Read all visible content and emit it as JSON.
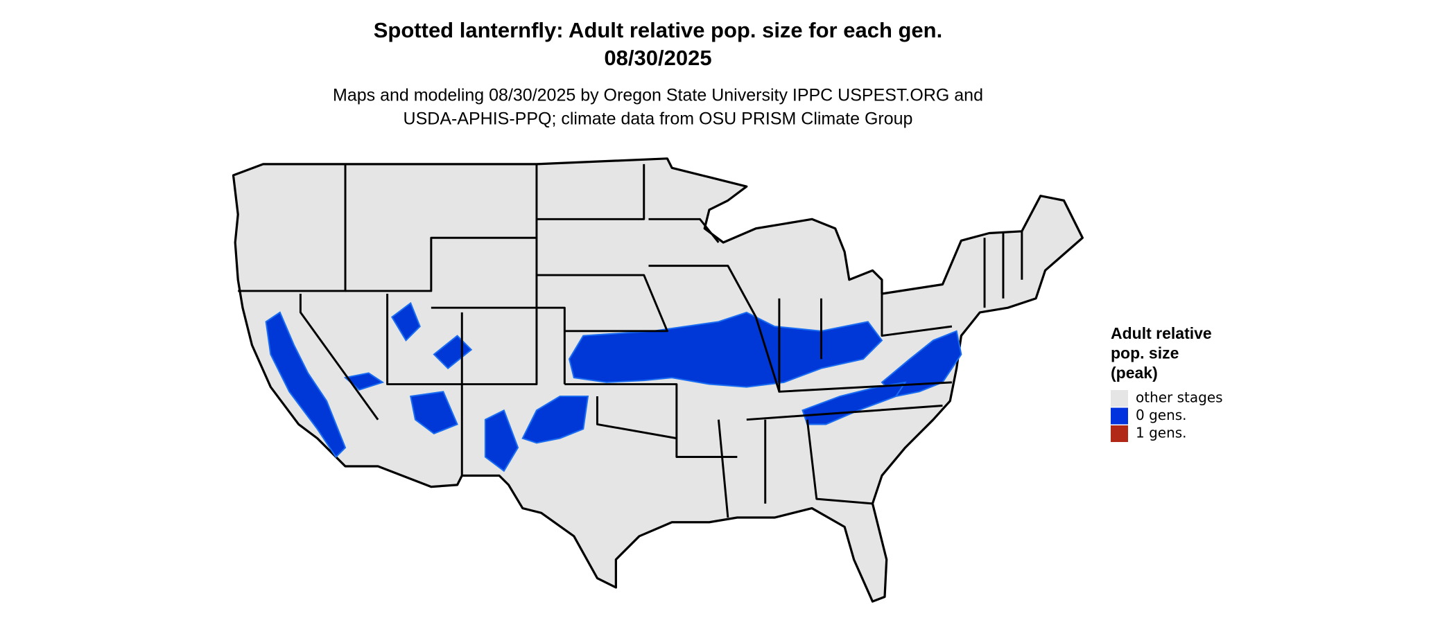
{
  "header": {
    "title_lines": [
      "Spotted lanternfly: Adult relative pop. size for each gen.",
      "08/30/2025"
    ],
    "subtitle_lines": [
      "Maps and modeling 08/30/2025 by Oregon State University IPPC USPEST.ORG and",
      "USDA-APHIS-PPQ; climate data from OSU PRISM Climate Group"
    ]
  },
  "legend": {
    "title_lines": [
      "Adult relative",
      "pop. size",
      "(peak)"
    ],
    "entries": [
      {
        "label": "other stages",
        "color": "#e5e5e5"
      },
      {
        "label": "0 gens.",
        "color": "#0033dd"
      },
      {
        "label": "1 gens.",
        "color": "#b22816"
      }
    ]
  }
}
